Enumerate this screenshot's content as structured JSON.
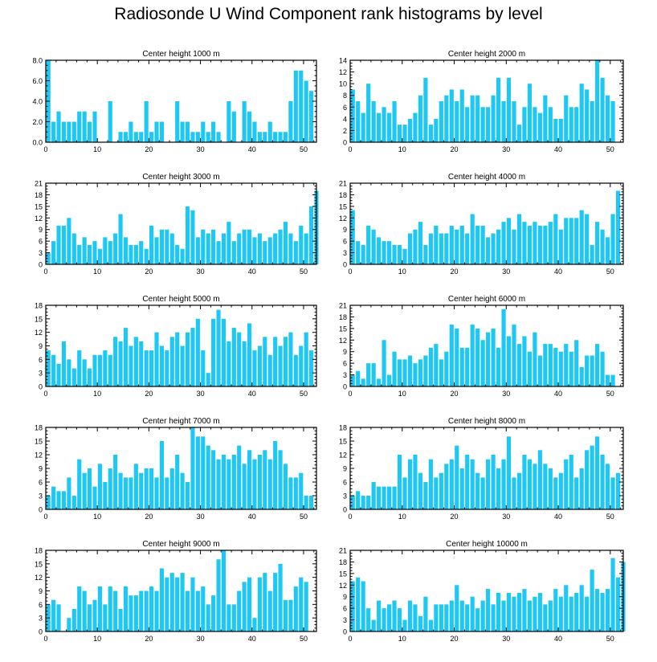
{
  "page_title": "Radiosonde U Wind Component rank histograms by level",
  "colors": {
    "bar": "#1ec8f4",
    "axis": "#000000"
  },
  "chart_data": [
    {
      "type": "bar",
      "title": "Center height 1000 m",
      "xlim": [
        0,
        52.5
      ],
      "xticks": [
        0,
        10,
        20,
        30,
        40,
        50
      ],
      "ylim": [
        0,
        8
      ],
      "yticks": [
        0,
        2,
        4,
        6,
        8
      ],
      "ytick_labels": [
        "0.0",
        "2.0",
        "4.0",
        "6.0",
        "8.0"
      ],
      "values": [
        8,
        2,
        3,
        2,
        2,
        2,
        3,
        3,
        2,
        3,
        0,
        0,
        4,
        0,
        1,
        1,
        2,
        1,
        1,
        4,
        1,
        2,
        2,
        0,
        0,
        4,
        2,
        2,
        1,
        1,
        2,
        1,
        2,
        1,
        0,
        4,
        3,
        0,
        4,
        3,
        2,
        1,
        1,
        2,
        1,
        1,
        1,
        4,
        7,
        7,
        6,
        5
      ]
    },
    {
      "type": "bar",
      "title": "Center height 2000 m",
      "xlim": [
        0,
        52.5
      ],
      "xticks": [
        0,
        10,
        20,
        30,
        40,
        50
      ],
      "ylim": [
        0,
        14
      ],
      "yticks": [
        0,
        2,
        4,
        6,
        8,
        10,
        12,
        14
      ],
      "ytick_labels": [
        "0",
        "2",
        "4",
        "6",
        "8",
        "10",
        "12",
        "14"
      ],
      "values": [
        9,
        7,
        5,
        10,
        7,
        5,
        6,
        5,
        7,
        3,
        3,
        4,
        5,
        8,
        11,
        3,
        4,
        7,
        8,
        9,
        7,
        9,
        6,
        8,
        8,
        6,
        6,
        8,
        11,
        7,
        11,
        7,
        3,
        6,
        10,
        6,
        5,
        8,
        6,
        4,
        4,
        8,
        6,
        6,
        10,
        9,
        7,
        14,
        11,
        8,
        7
      ]
    },
    {
      "type": "bar",
      "title": "Center height 3000 m",
      "xlim": [
        0,
        52.5
      ],
      "xticks": [
        0,
        10,
        20,
        30,
        40,
        50
      ],
      "ylim": [
        0,
        21
      ],
      "yticks": [
        0,
        3,
        6,
        9,
        12,
        15,
        18,
        21
      ],
      "ytick_labels": [
        "0",
        "3",
        "6",
        "9",
        "12",
        "15",
        "18",
        "21"
      ],
      "values": [
        3,
        6,
        10,
        10,
        12,
        8,
        5,
        7,
        5,
        6,
        4,
        7,
        6,
        8,
        13,
        7,
        5,
        5,
        6,
        4,
        10,
        7,
        9,
        9,
        8,
        5,
        4,
        15,
        14,
        7,
        9,
        8,
        9,
        6,
        8,
        11,
        6,
        8,
        9,
        9,
        7,
        8,
        6,
        7,
        8,
        9,
        11,
        8,
        6,
        10,
        8,
        15,
        19
      ]
    },
    {
      "type": "bar",
      "title": "Center height 4000 m",
      "xlim": [
        0,
        52.5
      ],
      "xticks": [
        0,
        10,
        20,
        30,
        40,
        50
      ],
      "ylim": [
        0,
        21
      ],
      "yticks": [
        0,
        3,
        6,
        9,
        12,
        15,
        18,
        21
      ],
      "ytick_labels": [
        "0",
        "3",
        "6",
        "9",
        "12",
        "15",
        "18",
        "21"
      ],
      "values": [
        14,
        6,
        5,
        10,
        9,
        7,
        6,
        6,
        5,
        5,
        4,
        8,
        9,
        11,
        5,
        8,
        10,
        8,
        8,
        10,
        9,
        10,
        8,
        13,
        10,
        10,
        7,
        8,
        9,
        11,
        12,
        9,
        13,
        11,
        10,
        11,
        10,
        10,
        11,
        13,
        9,
        12,
        12,
        12,
        14,
        13,
        5,
        11,
        9,
        7,
        13,
        19
      ]
    },
    {
      "type": "bar",
      "title": "Center height 5000 m",
      "xlim": [
        0,
        52.5
      ],
      "xticks": [
        0,
        10,
        20,
        30,
        40,
        50
      ],
      "ylim": [
        0,
        18
      ],
      "yticks": [
        0,
        3,
        6,
        9,
        12,
        15,
        18
      ],
      "ytick_labels": [
        "0",
        "3",
        "6",
        "9",
        "12",
        "15",
        "18"
      ],
      "values": [
        8,
        7,
        5,
        10,
        6,
        4,
        8,
        6,
        4,
        7,
        7,
        8,
        7,
        11,
        10,
        13,
        9,
        11,
        10,
        8,
        8,
        12,
        9,
        8,
        11,
        12,
        9,
        12,
        13,
        15,
        8,
        3,
        15,
        17,
        15,
        10,
        13,
        12,
        10,
        14,
        8,
        9,
        11,
        7,
        11,
        9,
        11,
        12,
        7,
        9,
        12,
        8
      ]
    },
    {
      "type": "bar",
      "title": "Center height 6000 m",
      "xlim": [
        0,
        52.5
      ],
      "xticks": [
        0,
        10,
        20,
        30,
        40,
        50
      ],
      "ylim": [
        0,
        21
      ],
      "yticks": [
        0,
        3,
        6,
        9,
        12,
        15,
        18,
        21
      ],
      "ytick_labels": [
        "0",
        "3",
        "6",
        "9",
        "12",
        "15",
        "18",
        "21"
      ],
      "values": [
        3,
        4,
        2,
        6,
        6,
        2,
        12,
        3,
        9,
        7,
        7,
        8,
        6,
        7,
        8,
        10,
        11,
        7,
        9,
        16,
        15,
        10,
        10,
        16,
        15,
        12,
        14,
        15,
        10,
        20,
        13,
        16,
        11,
        13,
        9,
        14,
        8,
        11,
        11,
        10,
        9,
        11,
        9,
        12,
        5,
        8,
        8,
        11,
        9,
        3,
        3
      ]
    },
    {
      "type": "bar",
      "title": "Center height 7000 m",
      "xlim": [
        0,
        52.5
      ],
      "xticks": [
        0,
        10,
        20,
        30,
        40,
        50
      ],
      "ylim": [
        0,
        18
      ],
      "yticks": [
        0,
        3,
        6,
        9,
        12,
        15,
        18
      ],
      "ytick_labels": [
        "0",
        "3",
        "6",
        "9",
        "12",
        "15",
        "18"
      ],
      "values": [
        3,
        5,
        4,
        4,
        7,
        3,
        11,
        8,
        9,
        5,
        10,
        6,
        9,
        12,
        8,
        7,
        7,
        10,
        8,
        9,
        9,
        7,
        15,
        7,
        9,
        12,
        8,
        6,
        18,
        16,
        16,
        14,
        13,
        11,
        12,
        11,
        12,
        14,
        10,
        13,
        11,
        12,
        13,
        11,
        15,
        13,
        10,
        7,
        7,
        8,
        3,
        3
      ]
    },
    {
      "type": "bar",
      "title": "Center height 8000 m",
      "xlim": [
        0,
        52.5
      ],
      "xticks": [
        0,
        10,
        20,
        30,
        40,
        50
      ],
      "ylim": [
        0,
        18
      ],
      "yticks": [
        0,
        3,
        6,
        9,
        12,
        15,
        18
      ],
      "ytick_labels": [
        "0",
        "3",
        "6",
        "9",
        "12",
        "15",
        "18"
      ],
      "values": [
        3,
        4,
        3,
        3,
        6,
        5,
        5,
        5,
        5,
        12,
        7,
        11,
        12,
        8,
        6,
        11,
        7,
        8,
        10,
        11,
        14,
        9,
        12,
        11,
        8,
        7,
        11,
        12,
        9,
        11,
        16,
        7,
        8,
        12,
        11,
        10,
        13,
        10,
        9,
        7,
        8,
        11,
        12,
        7,
        9,
        13,
        14,
        16,
        12,
        10,
        7,
        8
      ]
    },
    {
      "type": "bar",
      "title": "Center height 9000 m",
      "xlim": [
        0,
        52.5
      ],
      "xticks": [
        0,
        10,
        20,
        30,
        40,
        50
      ],
      "ylim": [
        0,
        18
      ],
      "yticks": [
        0,
        3,
        6,
        9,
        12,
        15,
        18
      ],
      "ytick_labels": [
        "0",
        "3",
        "6",
        "9",
        "12",
        "15",
        "18"
      ],
      "values": [
        6,
        7,
        6,
        0,
        3,
        5,
        10,
        9,
        6,
        7,
        10,
        6,
        10,
        9,
        5,
        10,
        8,
        8,
        9,
        9,
        10,
        9,
        14,
        12,
        13,
        12,
        13,
        9,
        12,
        9,
        10,
        6,
        8,
        16,
        18,
        6,
        6,
        9,
        11,
        12,
        3,
        12,
        13,
        9,
        13,
        15,
        7,
        7,
        10,
        12,
        11
      ]
    },
    {
      "type": "bar",
      "title": "Center height 10000 m",
      "xlim": [
        0,
        52.5
      ],
      "xticks": [
        0,
        10,
        20,
        30,
        40,
        50
      ],
      "ylim": [
        0,
        21
      ],
      "yticks": [
        0,
        3,
        6,
        9,
        12,
        15,
        18,
        21
      ],
      "ytick_labels": [
        "0",
        "3",
        "6",
        "9",
        "12",
        "15",
        "18",
        "21"
      ],
      "values": [
        13,
        14,
        13,
        6,
        3,
        8,
        6,
        7,
        8,
        6,
        3,
        8,
        7,
        4,
        9,
        3,
        7,
        7,
        7,
        8,
        12,
        8,
        7,
        9,
        6,
        8,
        11,
        7,
        10,
        8,
        10,
        9,
        10,
        11,
        8,
        9,
        10,
        7,
        8,
        11,
        9,
        12,
        9,
        10,
        12,
        9,
        16,
        11,
        10,
        11,
        19,
        14,
        18
      ]
    }
  ]
}
